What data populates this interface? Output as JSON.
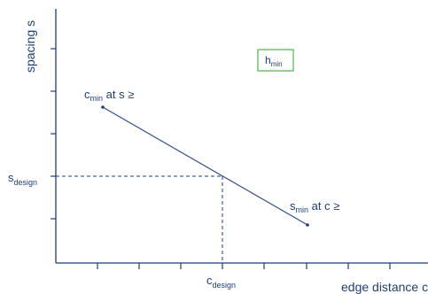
{
  "axes": {
    "y_title": "spacing s",
    "x_title": "edge distance c"
  },
  "labels": {
    "hmin_main": "h",
    "hmin_sub": "min",
    "cmin_main": "c",
    "cmin_sub": "min",
    "cmin_tail": " at s ≥",
    "smin_main": "s",
    "smin_sub": "min",
    "smin_tail": " at c ≥",
    "sdesign_main": "s",
    "sdesign_sub": "design",
    "cdesign_main": "c",
    "cdesign_sub": "design"
  },
  "colors": {
    "line": "#2f4f8f",
    "axis": "#1f3e73",
    "box_border": "#5cb85c"
  }
}
